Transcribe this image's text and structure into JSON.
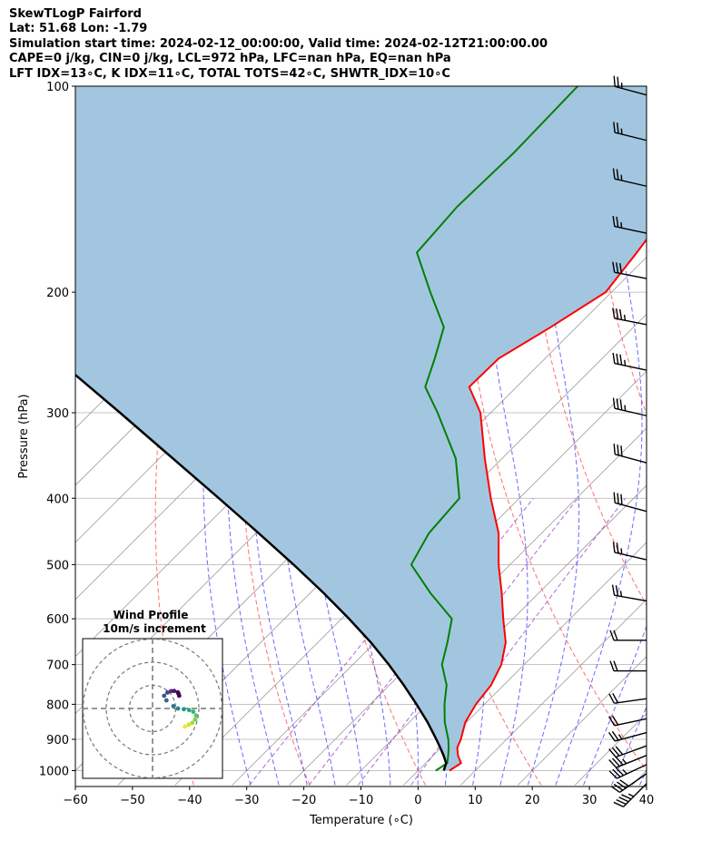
{
  "header": {
    "title": "SkewTLogP Fairford",
    "latlon": "Lat: 51.68   Lon: -1.79",
    "times": "Simulation start time: 2024-02-12_00:00:00, Valid time: 2024-02-12T21:00:00.00",
    "cape": "CAPE=0 j/kg, CIN=0 j/kg, LCL=972 hPa, LFC=nan hPa, EQ=nan hPa",
    "indices": "LFT IDX=13∘C, K IDX=11∘C, TOTAL TOTS=42∘C, SHWTR_IDX=10∘C"
  },
  "colors": {
    "temperature": "#ff0000",
    "dewpoint": "#008000",
    "parcel": "#000000",
    "cape_fill": "#a3c6e0",
    "dry_adiabat": "#ff5555",
    "moist_adiabat": "#4444ff",
    "mixing_ratio": "#9933cc",
    "isotherm": "#9a9a9a"
  },
  "chart_data": [
    {
      "type": "line",
      "title": "",
      "xlabel": "Temperature (∘C)",
      "ylabel": "Pressure (hPa)",
      "xlim": [
        -60,
        40
      ],
      "ylim": [
        1050,
        100
      ],
      "yscale": "log",
      "skew": true,
      "grid": true,
      "x_ticks": [
        "−60",
        "−50",
        "−40",
        "−30",
        "−20",
        "−10",
        "0",
        "10",
        "20",
        "30",
        "40"
      ],
      "x_tick_values": [
        -60,
        -50,
        -40,
        -30,
        -20,
        -10,
        0,
        10,
        20,
        30,
        40
      ],
      "y_ticks": [
        "100",
        "200",
        "300",
        "400",
        "500",
        "600",
        "700",
        "800",
        "900",
        "1000"
      ],
      "y_tick_values": [
        100,
        200,
        300,
        400,
        500,
        600,
        700,
        800,
        900,
        1000
      ],
      "series": [
        {
          "name": "Temperature",
          "pressure": [
            1000,
            975,
            950,
            925,
            900,
            850,
            800,
            750,
            700,
            650,
            600,
            550,
            500,
            450,
            400,
            350,
            300,
            275,
            250,
            225,
            200,
            175,
            150,
            125,
            100
          ],
          "values": [
            5.5,
            6.2,
            4.3,
            2.8,
            2.0,
            -0.2,
            -1.5,
            -2.2,
            -4.0,
            -7.1,
            -11.7,
            -16.5,
            -22.0,
            -27.5,
            -35.0,
            -43.0,
            -51.8,
            -58.3,
            -58.1,
            -54.5,
            -51.0,
            -52.5,
            -54.5,
            -57.5,
            -62.5
          ]
        },
        {
          "name": "Dew point",
          "pressure": [
            1000,
            975,
            950,
            925,
            900,
            850,
            800,
            750,
            700,
            650,
            600,
            550,
            500,
            450,
            400,
            350,
            300,
            275,
            250,
            225,
            200,
            175,
            150,
            125,
            100
          ],
          "values": [
            3.1,
            3.8,
            2.6,
            1.3,
            -0.2,
            -3.8,
            -7.0,
            -10.0,
            -14.4,
            -17.3,
            -20.7,
            -29.0,
            -37.3,
            -39.7,
            -40.5,
            -48.1,
            -59.3,
            -66.0,
            -69.3,
            -73.2,
            -81.7,
            -91.0,
            -92.0,
            -91.5,
            -92.0
          ]
        },
        {
          "name": "Parcel profile",
          "pressure": [
            1000,
            975,
            950,
            925,
            900,
            850,
            800,
            750,
            700,
            650,
            600,
            550,
            500,
            450,
            400,
            350,
            300,
            250,
            200,
            150,
            100
          ],
          "values": [
            4.5,
            3.6,
            1.8,
            -0.2,
            -2.3,
            -6.8,
            -11.9,
            -17.5,
            -23.7,
            -30.7,
            -38.7,
            -47.7,
            -57.9,
            -69.5,
            -82.6,
            -97.6,
            -114.9,
            -135.6,
            -160.8,
            -193.6,
            -240.0
          ]
        }
      ]
    },
    {
      "type": "scatter",
      "title": "Wind Profile",
      "subtitle": "10m/s increment",
      "rings_ms": [
        10,
        20,
        30
      ],
      "wind_u_ms": [
        14.0,
        15.7,
        17.2,
        18.4,
        18.8,
        17.6,
        15.8,
        13.5,
        11.0,
        9.0,
        6.0,
        5.0,
        6.4,
        8.0,
        9.3,
        10.9,
        11.2,
        11.5
      ],
      "wind_v_ms": [
        -7.8,
        -7.0,
        -6.2,
        -4.8,
        -3.0,
        -1.4,
        -0.7,
        -0.3,
        0.0,
        1.0,
        3.5,
        5.5,
        6.9,
        7.5,
        7.6,
        7.0,
        6.4,
        5.5
      ]
    }
  ],
  "wind_barbs": [
    {
      "pressure": 1045,
      "speed_kt": 45,
      "dir_deg": 225
    },
    {
      "pressure": 1010,
      "speed_kt": 40,
      "dir_deg": 235
    },
    {
      "pressure": 980,
      "speed_kt": 35,
      "dir_deg": 245
    },
    {
      "pressure": 950,
      "speed_kt": 35,
      "dir_deg": 248
    },
    {
      "pressure": 920,
      "speed_kt": 30,
      "dir_deg": 250
    },
    {
      "pressure": 880,
      "speed_kt": 25,
      "dir_deg": 255
    },
    {
      "pressure": 840,
      "speed_kt": 20,
      "dir_deg": 258
    },
    {
      "pressure": 785,
      "speed_kt": 20,
      "dir_deg": 262
    },
    {
      "pressure": 715,
      "speed_kt": 20,
      "dir_deg": 270
    },
    {
      "pressure": 645,
      "speed_kt": 20,
      "dir_deg": 270
    },
    {
      "pressure": 565,
      "speed_kt": 25,
      "dir_deg": 280
    },
    {
      "pressure": 492,
      "speed_kt": 25,
      "dir_deg": 283
    },
    {
      "pressure": 418,
      "speed_kt": 30,
      "dir_deg": 285
    },
    {
      "pressure": 355,
      "speed_kt": 30,
      "dir_deg": 285
    },
    {
      "pressure": 303,
      "speed_kt": 35,
      "dir_deg": 283
    },
    {
      "pressure": 260,
      "speed_kt": 35,
      "dir_deg": 282
    },
    {
      "pressure": 223,
      "speed_kt": 35,
      "dir_deg": 281
    },
    {
      "pressure": 191,
      "speed_kt": 30,
      "dir_deg": 281
    },
    {
      "pressure": 164,
      "speed_kt": 25,
      "dir_deg": 282
    },
    {
      "pressure": 140,
      "speed_kt": 25,
      "dir_deg": 283
    },
    {
      "pressure": 120,
      "speed_kt": 25,
      "dir_deg": 284
    },
    {
      "pressure": 103,
      "speed_kt": 25,
      "dir_deg": 285
    }
  ]
}
